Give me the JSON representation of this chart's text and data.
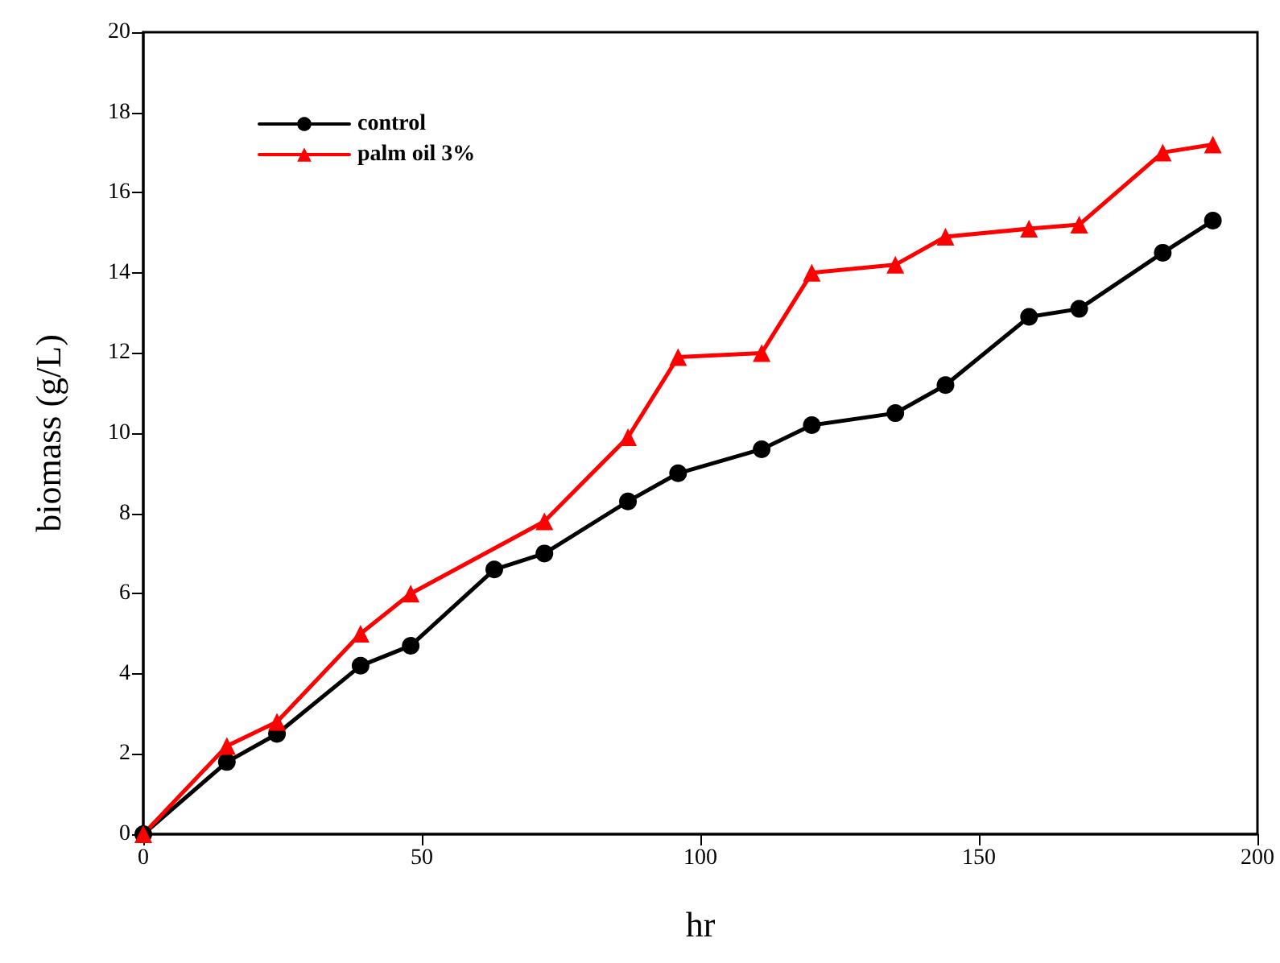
{
  "chart_data": {
    "type": "line",
    "xlabel": "hr",
    "ylabel": "biomass (g/L)",
    "xlim": [
      0,
      200
    ],
    "xticks": [
      0,
      50,
      100,
      150,
      200
    ],
    "ylim": [
      0,
      20
    ],
    "yticks": [
      0,
      2,
      4,
      6,
      8,
      10,
      12,
      14,
      16,
      18,
      20
    ],
    "legend": "top left",
    "grid": false,
    "series": [
      {
        "name": "control",
        "color": "#000000",
        "marker": "circle",
        "x": [
          0,
          15,
          24,
          39,
          48,
          63,
          72,
          87,
          96,
          111,
          120,
          135,
          144,
          159,
          168,
          183,
          192
        ],
        "values": [
          0,
          1.8,
          2.5,
          4.2,
          4.7,
          6.6,
          7.0,
          8.3,
          9.0,
          9.6,
          10.2,
          10.5,
          11.2,
          12.9,
          13.1,
          14.5,
          15.3
        ]
      },
      {
        "name": "palm oil 3%",
        "color": "#ff0000",
        "marker": "triangle",
        "x": [
          0,
          15,
          24,
          39,
          48,
          72,
          87,
          96,
          111,
          120,
          135,
          144,
          159,
          168,
          183,
          192
        ],
        "values": [
          0,
          2.2,
          2.8,
          5.0,
          6.0,
          7.8,
          9.9,
          11.9,
          12.0,
          14.0,
          14.2,
          14.9,
          15.1,
          15.2,
          17.0,
          17.2
        ]
      }
    ]
  }
}
